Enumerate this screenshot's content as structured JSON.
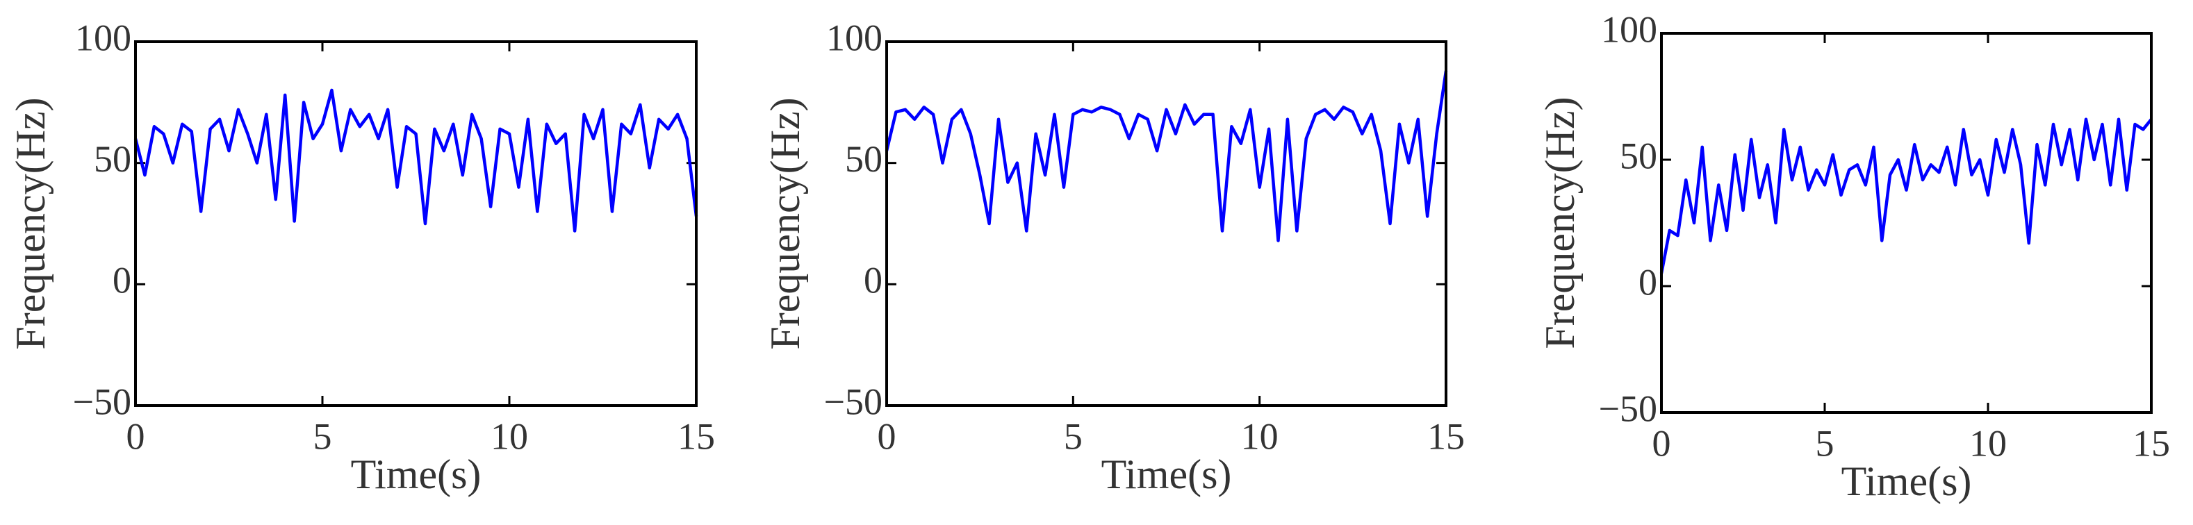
{
  "chart_data": [
    {
      "type": "line",
      "xlabel": "Time(s)",
      "ylabel": "Frequency(Hz)",
      "color": "#0000ff",
      "x": [
        0,
        0.25,
        0.5,
        0.75,
        1,
        1.25,
        1.5,
        1.75,
        2,
        2.25,
        2.5,
        2.75,
        3,
        3.25,
        3.5,
        3.75,
        4,
        4.25,
        4.5,
        4.75,
        5,
        5.25,
        5.5,
        5.75,
        6,
        6.25,
        6.5,
        6.75,
        7,
        7.25,
        7.5,
        7.75,
        8,
        8.25,
        8.5,
        8.75,
        9,
        9.25,
        9.5,
        9.75,
        10,
        10.25,
        10.5,
        10.75,
        11,
        11.25,
        11.5,
        11.75,
        12,
        12.25,
        12.5,
        12.75,
        13,
        13.25,
        13.5,
        13.75,
        14,
        14.25,
        14.5,
        14.75,
        15
      ],
      "values": [
        60,
        45,
        65,
        62,
        50,
        66,
        63,
        30,
        64,
        68,
        55,
        72,
        62,
        50,
        70,
        35,
        78,
        26,
        75,
        60,
        66,
        80,
        55,
        72,
        65,
        70,
        60,
        72,
        40,
        65,
        62,
        25,
        64,
        55,
        66,
        45,
        70,
        60,
        32,
        64,
        62,
        40,
        68,
        30,
        66,
        58,
        62,
        22,
        70,
        60,
        72,
        30,
        66,
        62,
        74,
        48,
        68,
        64,
        70,
        60,
        28
      ],
      "xlim": [
        0,
        15
      ],
      "ylim": [
        -50,
        100
      ],
      "xticks": [
        0,
        5,
        10,
        15
      ],
      "yticks": [
        {
          "value": -50,
          "label": "−50"
        },
        0,
        50,
        100
      ]
    },
    {
      "type": "line",
      "xlabel": "Time(s)",
      "ylabel": "Frequency(Hz)",
      "color": "#0000ff",
      "x": [
        0,
        0.25,
        0.5,
        0.75,
        1,
        1.25,
        1.5,
        1.75,
        2,
        2.25,
        2.5,
        2.75,
        3,
        3.25,
        3.5,
        3.75,
        4,
        4.25,
        4.5,
        4.75,
        5,
        5.25,
        5.5,
        5.75,
        6,
        6.25,
        6.5,
        6.75,
        7,
        7.25,
        7.5,
        7.75,
        8,
        8.25,
        8.5,
        8.75,
        9,
        9.25,
        9.5,
        9.75,
        10,
        10.25,
        10.5,
        10.75,
        11,
        11.25,
        11.5,
        11.75,
        12,
        12.25,
        12.5,
        12.75,
        13,
        13.25,
        13.5,
        13.75,
        14,
        14.25,
        14.5,
        14.75,
        15
      ],
      "values": [
        55,
        71,
        72,
        68,
        73,
        70,
        50,
        68,
        72,
        62,
        45,
        25,
        68,
        42,
        50,
        22,
        62,
        45,
        70,
        40,
        70,
        72,
        71,
        73,
        72,
        70,
        60,
        70,
        68,
        55,
        72,
        62,
        74,
        66,
        70,
        70,
        22,
        65,
        58,
        72,
        40,
        64,
        18,
        68,
        22,
        60,
        70,
        72,
        68,
        73,
        71,
        62,
        70,
        55,
        25,
        66,
        50,
        68,
        28,
        62,
        88
      ],
      "xlim": [
        0,
        15
      ],
      "ylim": [
        -50,
        100
      ],
      "xticks": [
        0,
        5,
        10,
        15
      ],
      "yticks": [
        {
          "value": -50,
          "label": "−50"
        },
        0,
        50,
        100
      ]
    },
    {
      "type": "line",
      "xlabel": "Time(s)",
      "ylabel": "Frequency(Hz)",
      "color": "#0000ff",
      "x": [
        0,
        0.25,
        0.5,
        0.75,
        1,
        1.25,
        1.5,
        1.75,
        2,
        2.25,
        2.5,
        2.75,
        3,
        3.25,
        3.5,
        3.75,
        4,
        4.25,
        4.5,
        4.75,
        5,
        5.25,
        5.5,
        5.75,
        6,
        6.25,
        6.5,
        6.75,
        7,
        7.25,
        7.5,
        7.75,
        8,
        8.25,
        8.5,
        8.75,
        9,
        9.25,
        9.5,
        9.75,
        10,
        10.25,
        10.5,
        10.75,
        11,
        11.25,
        11.5,
        11.75,
        12,
        12.25,
        12.5,
        12.75,
        13,
        13.25,
        13.5,
        13.75,
        14,
        14.25,
        14.5,
        14.75,
        15
      ],
      "values": [
        5,
        22,
        20,
        42,
        25,
        55,
        18,
        40,
        22,
        52,
        30,
        58,
        35,
        48,
        25,
        62,
        42,
        55,
        38,
        46,
        40,
        52,
        36,
        46,
        48,
        40,
        55,
        18,
        44,
        50,
        38,
        56,
        42,
        48,
        45,
        55,
        40,
        62,
        44,
        50,
        36,
        58,
        45,
        62,
        48,
        17,
        56,
        40,
        64,
        48,
        62,
        42,
        66,
        50,
        64,
        40,
        66,
        38,
        64,
        62,
        66
      ],
      "xlim": [
        0,
        15
      ],
      "ylim": [
        -50,
        100
      ],
      "xticks": [
        0,
        5,
        10,
        15
      ],
      "yticks": [
        {
          "value": -50,
          "label": "−50"
        },
        0,
        50,
        100
      ]
    }
  ]
}
